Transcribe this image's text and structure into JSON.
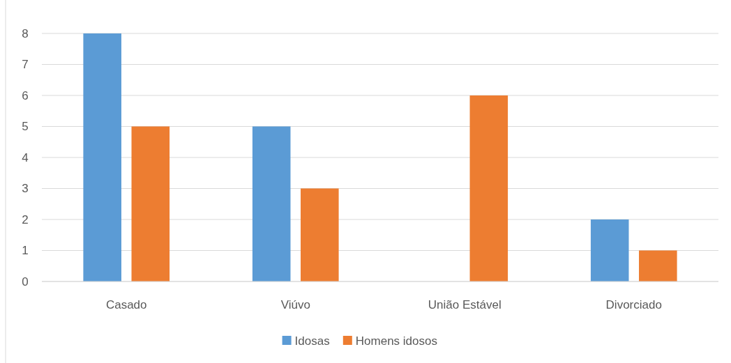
{
  "chart_data": {
    "type": "bar",
    "categories": [
      "Casado",
      "Viúvo",
      "União Estável",
      "Divorciado"
    ],
    "series": [
      {
        "name": "Idosas",
        "color": "#5b9bd5",
        "values": [
          8,
          5,
          0,
          2
        ]
      },
      {
        "name": "Homens idosos",
        "color": "#ed7d31",
        "values": [
          5,
          3,
          6,
          1
        ]
      }
    ],
    "ylim": [
      0,
      8
    ],
    "yticks": [
      0,
      1,
      2,
      3,
      4,
      5,
      6,
      7,
      8
    ],
    "grid": "y",
    "legend": "bottom"
  }
}
